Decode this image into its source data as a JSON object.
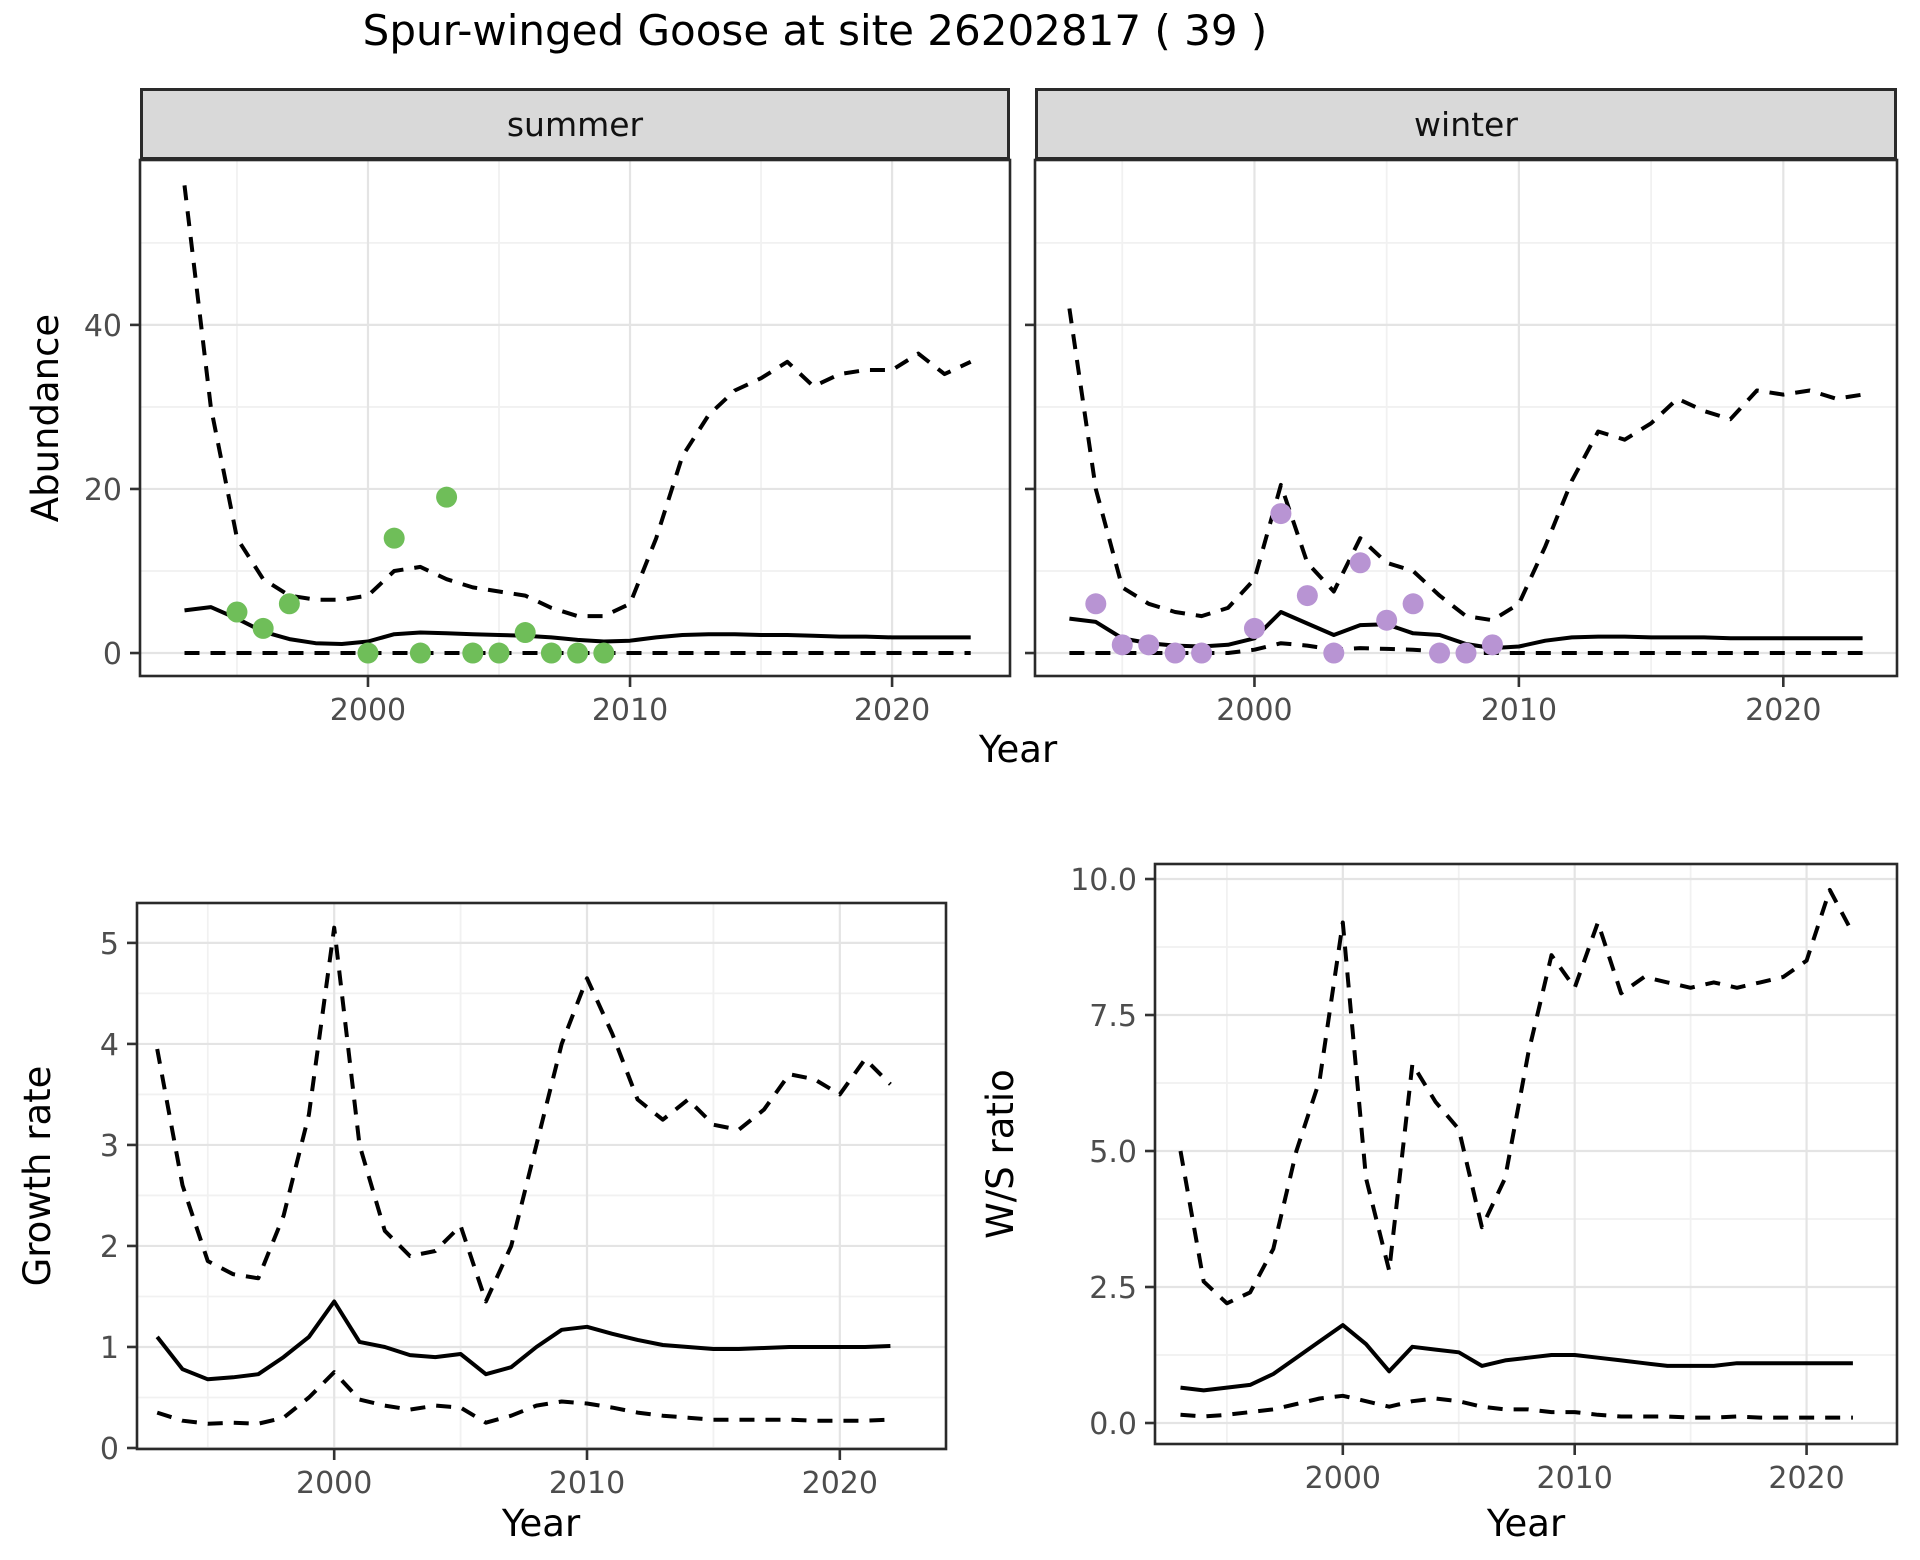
{
  "title": "Spur-winged Goose at site 26202817 ( 39 )",
  "colors": {
    "summer_point": "#6FBE59",
    "winter_point": "#B894D3",
    "line": "#000000",
    "strip_bg": "#D9D9D9",
    "grid_major": "#E4E4E4",
    "grid_minor": "#F1F1F1",
    "axis_text": "#4D4D4D",
    "panel_border": "#2A2A2A"
  },
  "chart_data": [
    {
      "type": "line",
      "facet_label": "summer",
      "xlabel": "Year",
      "ylabel": "Abundance",
      "xticks": [
        {
          "v": 2000,
          "t": "2000"
        },
        {
          "v": 2010,
          "t": "2010"
        },
        {
          "v": 2020,
          "t": "2020"
        }
      ],
      "yticks": [
        {
          "v": 0,
          "t": "0"
        },
        {
          "v": 20,
          "t": "20"
        },
        {
          "v": 40,
          "t": "40"
        }
      ],
      "xminor": [
        1995,
        2005,
        2015
      ],
      "yminor": [
        10,
        30,
        50
      ],
      "xlim": [
        1991.3,
        2024.5
      ],
      "ylim": [
        -2.8,
        60.1
      ],
      "grid": true,
      "legend": "none",
      "series": [
        {
          "name": "lower-ci",
          "style": "dashed",
          "years": [
            1993,
            1994,
            1995,
            1996,
            1997,
            1998,
            1999,
            2000,
            2001,
            2002,
            2003,
            2004,
            2005,
            2006,
            2007,
            2008,
            2009,
            2010,
            2011,
            2012,
            2013,
            2014,
            2015,
            2016,
            2017,
            2018,
            2019,
            2020,
            2021,
            2022,
            2023
          ],
          "values": [
            0,
            0,
            0,
            0,
            0,
            0,
            0,
            0,
            0,
            0,
            0,
            0,
            0,
            0,
            0,
            0,
            0,
            0,
            0,
            0,
            0,
            0,
            0,
            0,
            0,
            0,
            0,
            0,
            0,
            0,
            0
          ]
        },
        {
          "name": "upper-ci",
          "style": "dashed",
          "years": [
            1993,
            1994,
            1995,
            1996,
            1997,
            1998,
            1999,
            2000,
            2001,
            2002,
            2003,
            2004,
            2005,
            2006,
            2007,
            2008,
            2009,
            2010,
            2011,
            2012,
            2013,
            2014,
            2015,
            2016,
            2017,
            2018,
            2019,
            2020,
            2021,
            2022,
            2023
          ],
          "values": [
            57,
            30,
            14,
            9,
            7,
            6.5,
            6.5,
            7,
            10,
            10.5,
            9,
            8,
            7.5,
            7,
            5.5,
            4.5,
            4.5,
            6,
            14,
            24,
            29,
            32,
            33.5,
            35.5,
            32.5,
            34,
            34.5,
            34.5,
            36.5,
            34,
            35.5
          ]
        },
        {
          "name": "fit",
          "style": "solid",
          "years": [
            1993,
            1994,
            1995,
            1996,
            1997,
            1998,
            1999,
            2000,
            2001,
            2002,
            2003,
            2004,
            2005,
            2006,
            2007,
            2008,
            2009,
            2010,
            2011,
            2012,
            2013,
            2014,
            2015,
            2016,
            2017,
            2018,
            2019,
            2020,
            2021,
            2022,
            2023
          ],
          "values": [
            5.2,
            5.6,
            4.2,
            2.6,
            1.7,
            1.2,
            1.1,
            1.4,
            2.3,
            2.5,
            2.4,
            2.3,
            2.2,
            2.1,
            1.9,
            1.6,
            1.4,
            1.5,
            1.9,
            2.2,
            2.3,
            2.3,
            2.2,
            2.2,
            2.1,
            2.0,
            2.0,
            1.9,
            1.9,
            1.9,
            1.9
          ]
        },
        {
          "name": "observed",
          "style": "points",
          "color": "#6FBE59",
          "years": [
            1995,
            1996,
            1997,
            2000,
            2001,
            2002,
            2003,
            2004,
            2005,
            2006,
            2007,
            2008,
            2009
          ],
          "values": [
            5,
            3,
            6,
            0,
            14,
            0,
            19,
            0,
            0,
            2.5,
            0,
            0,
            0
          ]
        }
      ]
    },
    {
      "type": "line",
      "facet_label": "winter",
      "xlabel": "Year",
      "ylabel": "Abundance",
      "xticks": [
        {
          "v": 2000,
          "t": "2000"
        },
        {
          "v": 2010,
          "t": "2010"
        },
        {
          "v": 2020,
          "t": "2020"
        }
      ],
      "yticks": [
        {
          "v": 0,
          "t": "0"
        },
        {
          "v": 20,
          "t": "20"
        },
        {
          "v": 40,
          "t": "40"
        }
      ],
      "xminor": [
        1995,
        2005,
        2015
      ],
      "yminor": [
        10,
        30,
        50
      ],
      "xlim": [
        1991.7,
        2024.3
      ],
      "ylim": [
        -2.8,
        60.1
      ],
      "grid": true,
      "legend": "none",
      "series": [
        {
          "name": "lower-ci",
          "style": "dashed",
          "years": [
            1993,
            1994,
            1995,
            1996,
            1997,
            1998,
            1999,
            2000,
            2001,
            2002,
            2003,
            2004,
            2005,
            2006,
            2007,
            2008,
            2009,
            2010,
            2011,
            2012,
            2013,
            2014,
            2015,
            2016,
            2017,
            2018,
            2019,
            2020,
            2021,
            2022,
            2023
          ],
          "values": [
            0,
            0,
            0,
            0,
            0,
            0,
            0,
            0.4,
            1.2,
            0.9,
            0.4,
            0.6,
            0.5,
            0.4,
            0.2,
            0,
            0,
            0,
            0,
            0,
            0,
            0,
            0,
            0,
            0,
            0,
            0,
            0,
            0,
            0,
            0
          ]
        },
        {
          "name": "upper-ci",
          "style": "dashed",
          "years": [
            1993,
            1994,
            1995,
            1996,
            1997,
            1998,
            1999,
            2000,
            2001,
            2002,
            2003,
            2004,
            2005,
            2006,
            2007,
            2008,
            2009,
            2010,
            2011,
            2012,
            2013,
            2014,
            2015,
            2016,
            2017,
            2018,
            2019,
            2020,
            2021,
            2022,
            2023
          ],
          "values": [
            42,
            20,
            8,
            6,
            5,
            4.5,
            5.5,
            9,
            20.5,
            11,
            7.5,
            14,
            11,
            10,
            7,
            4.5,
            4,
            6,
            13,
            21,
            27,
            26,
            28,
            31,
            29.5,
            28.5,
            32,
            31.5,
            32,
            31,
            31.5
          ]
        },
        {
          "name": "fit",
          "style": "solid",
          "years": [
            1993,
            1994,
            1995,
            1996,
            1997,
            1998,
            1999,
            2000,
            2001,
            2002,
            2003,
            2004,
            2005,
            2006,
            2007,
            2008,
            2009,
            2010,
            2011,
            2012,
            2013,
            2014,
            2015,
            2016,
            2017,
            2018,
            2019,
            2020,
            2021,
            2022,
            2023
          ],
          "values": [
            4.2,
            3.8,
            1.8,
            1.2,
            0.9,
            0.8,
            1.0,
            1.8,
            5.0,
            3.6,
            2.2,
            3.4,
            3.5,
            2.4,
            2.2,
            1.1,
            0.6,
            0.8,
            1.5,
            1.9,
            2.0,
            2.0,
            1.9,
            1.9,
            1.9,
            1.8,
            1.8,
            1.8,
            1.8,
            1.8,
            1.8
          ]
        },
        {
          "name": "observed",
          "style": "points",
          "color": "#B894D3",
          "years": [
            1994,
            1995,
            1996,
            1997,
            1998,
            2000,
            2001,
            2002,
            2003,
            2004,
            2005,
            2006,
            2007,
            2008,
            2009
          ],
          "values": [
            6,
            1,
            1,
            0,
            0,
            3,
            17,
            7,
            0,
            11,
            4,
            6,
            0,
            0,
            1
          ]
        }
      ]
    },
    {
      "type": "line",
      "facet_label": "",
      "xlabel": "Year",
      "ylabel": "Growth rate",
      "xticks": [
        {
          "v": 2000,
          "t": "2000"
        },
        {
          "v": 2010,
          "t": "2010"
        },
        {
          "v": 2020,
          "t": "2020"
        }
      ],
      "yticks": [
        {
          "v": 0,
          "t": "0"
        },
        {
          "v": 1,
          "t": "1"
        },
        {
          "v": 2,
          "t": "2"
        },
        {
          "v": 3,
          "t": "3"
        },
        {
          "v": 4,
          "t": "4"
        },
        {
          "v": 5,
          "t": "5"
        }
      ],
      "xminor": [
        1995,
        2005,
        2015
      ],
      "yminor": [
        0.5,
        1.5,
        2.5,
        3.5,
        4.5
      ],
      "xlim": [
        1992.2,
        2024.2
      ],
      "ylim": [
        -0.01,
        5.395
      ],
      "grid": true,
      "legend": "none",
      "series": [
        {
          "name": "lower-ci",
          "style": "dashed",
          "years": [
            1993,
            1994,
            1995,
            1996,
            1997,
            1998,
            1999,
            2000,
            2001,
            2002,
            2003,
            2004,
            2005,
            2006,
            2007,
            2008,
            2009,
            2010,
            2011,
            2012,
            2013,
            2014,
            2015,
            2016,
            2017,
            2018,
            2019,
            2020,
            2021,
            2022
          ],
          "values": [
            0.35,
            0.27,
            0.24,
            0.25,
            0.24,
            0.3,
            0.5,
            0.75,
            0.48,
            0.42,
            0.38,
            0.42,
            0.4,
            0.25,
            0.32,
            0.42,
            0.46,
            0.44,
            0.4,
            0.35,
            0.32,
            0.3,
            0.28,
            0.28,
            0.28,
            0.28,
            0.27,
            0.27,
            0.27,
            0.28
          ]
        },
        {
          "name": "upper-ci",
          "style": "dashed",
          "years": [
            1993,
            1994,
            1995,
            1996,
            1997,
            1998,
            1999,
            2000,
            2001,
            2002,
            2003,
            2004,
            2005,
            2006,
            2007,
            2008,
            2009,
            2010,
            2011,
            2012,
            2013,
            2014,
            2015,
            2016,
            2017,
            2018,
            2019,
            2020,
            2021,
            2022
          ],
          "values": [
            3.95,
            2.6,
            1.85,
            1.72,
            1.68,
            2.3,
            3.3,
            5.15,
            3.0,
            2.15,
            1.9,
            1.95,
            2.2,
            1.45,
            2.0,
            3.0,
            4.0,
            4.65,
            4.1,
            3.45,
            3.25,
            3.45,
            3.2,
            3.15,
            3.35,
            3.7,
            3.65,
            3.5,
            3.85,
            3.6
          ]
        },
        {
          "name": "fit",
          "style": "solid",
          "years": [
            1993,
            1994,
            1995,
            1996,
            1997,
            1998,
            1999,
            2000,
            2001,
            2002,
            2003,
            2004,
            2005,
            2006,
            2007,
            2008,
            2009,
            2010,
            2011,
            2012,
            2013,
            2014,
            2015,
            2016,
            2017,
            2018,
            2019,
            2020,
            2021,
            2022
          ],
          "values": [
            1.1,
            0.78,
            0.68,
            0.7,
            0.73,
            0.9,
            1.1,
            1.45,
            1.05,
            1.0,
            0.92,
            0.9,
            0.93,
            0.73,
            0.8,
            1.0,
            1.17,
            1.2,
            1.13,
            1.07,
            1.02,
            1.0,
            0.98,
            0.98,
            0.99,
            1.0,
            1.0,
            1.0,
            1.0,
            1.01
          ]
        }
      ]
    },
    {
      "type": "line",
      "facet_label": "",
      "xlabel": "Year",
      "ylabel": "W/S ratio",
      "xticks": [
        {
          "v": 2000,
          "t": "2000"
        },
        {
          "v": 2010,
          "t": "2010"
        },
        {
          "v": 2020,
          "t": "2020"
        }
      ],
      "yticks": [
        {
          "v": 0,
          "t": "0.0"
        },
        {
          "v": 2.5,
          "t": "2.5"
        },
        {
          "v": 5,
          "t": "5.0"
        },
        {
          "v": 7.5,
          "t": "7.5"
        },
        {
          "v": 10,
          "t": "10.0"
        }
      ],
      "xminor": [
        1995,
        2005,
        2015
      ],
      "yminor": [
        1.25,
        3.75,
        6.25,
        8.75
      ],
      "xlim": [
        1991.9,
        2023.9
      ],
      "ylim": [
        -0.386,
        10.276
      ],
      "grid": true,
      "legend": "none",
      "series": [
        {
          "name": "lower-ci",
          "style": "dashed",
          "years": [
            1993,
            1994,
            1995,
            1996,
            1997,
            1998,
            1999,
            2000,
            2001,
            2002,
            2003,
            2004,
            2005,
            2006,
            2007,
            2008,
            2009,
            2010,
            2011,
            2012,
            2013,
            2014,
            2015,
            2016,
            2017,
            2018,
            2019,
            2020,
            2021,
            2022
          ],
          "values": [
            0.15,
            0.12,
            0.15,
            0.2,
            0.25,
            0.35,
            0.45,
            0.5,
            0.4,
            0.3,
            0.4,
            0.45,
            0.4,
            0.3,
            0.25,
            0.25,
            0.2,
            0.2,
            0.15,
            0.12,
            0.12,
            0.12,
            0.1,
            0.1,
            0.12,
            0.1,
            0.1,
            0.1,
            0.1,
            0.1
          ]
        },
        {
          "name": "upper-ci",
          "style": "dashed",
          "years": [
            1993,
            1994,
            1995,
            1996,
            1997,
            1998,
            1999,
            2000,
            2001,
            2002,
            2003,
            2004,
            2005,
            2006,
            2007,
            2008,
            2009,
            2010,
            2011,
            2012,
            2013,
            2014,
            2015,
            2016,
            2017,
            2018,
            2019,
            2020,
            2021,
            2022
          ],
          "values": [
            5.0,
            2.6,
            2.2,
            2.4,
            3.2,
            5.0,
            6.3,
            9.2,
            4.5,
            2.8,
            6.6,
            5.9,
            5.4,
            3.6,
            4.5,
            6.8,
            8.6,
            8.0,
            9.2,
            7.9,
            8.2,
            8.1,
            8.0,
            8.1,
            8.0,
            8.1,
            8.2,
            8.5,
            9.8,
            9.0
          ]
        },
        {
          "name": "fit",
          "style": "solid",
          "years": [
            1993,
            1994,
            1995,
            1996,
            1997,
            1998,
            1999,
            2000,
            2001,
            2002,
            2003,
            2004,
            2005,
            2006,
            2007,
            2008,
            2009,
            2010,
            2011,
            2012,
            2013,
            2014,
            2015,
            2016,
            2017,
            2018,
            2019,
            2020,
            2021,
            2022
          ],
          "values": [
            0.65,
            0.6,
            0.65,
            0.7,
            0.9,
            1.2,
            1.5,
            1.8,
            1.45,
            0.95,
            1.4,
            1.35,
            1.3,
            1.05,
            1.15,
            1.2,
            1.25,
            1.25,
            1.2,
            1.15,
            1.1,
            1.05,
            1.05,
            1.05,
            1.1,
            1.1,
            1.1,
            1.1,
            1.1,
            1.1
          ]
        }
      ]
    }
  ]
}
